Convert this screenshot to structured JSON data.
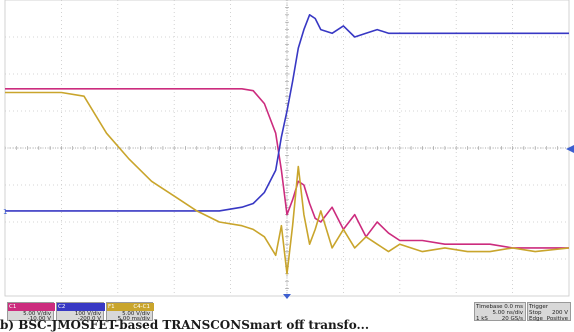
{
  "colors": {
    "ch1": "#cc2c7e",
    "ch2": "#3838c4",
    "ch3": "#c9a52c",
    "grid": "#c8c8c8",
    "axis": "#9a9a9a",
    "marker": "#3d5fd0"
  },
  "ch1": {
    "tag": "C1",
    "vdiv": "5.00 V/div",
    "offset": "-10.00 V"
  },
  "ch2": {
    "tag": "C2",
    "vdiv": "100 V/div",
    "offset": "-200.0 V"
  },
  "ch3": {
    "tag": "F1",
    "label": "C4-C1",
    "vdiv": "5.00 V/div",
    "offset": "5.00 ms/div"
  },
  "timebase": {
    "label": "Timebase",
    "value": "0.0 ms",
    "sdiv": "5.00 ns/div",
    "samples": "1 kS",
    "rate": "20 GS/s"
  },
  "trigger": {
    "label": "Trigger",
    "mode": "Stop",
    "level": "200 V",
    "type": "Edge",
    "slope": "Positive"
  },
  "side_marker": "1",
  "caption": "b) BSC-JMOSFET-based TRANSCONSmart off transfo...",
  "chart_data": {
    "type": "line",
    "x": [
      -25,
      -22,
      -20,
      -18,
      -16,
      -14,
      -12,
      -10,
      -8,
      -6,
      -4,
      -3,
      -2,
      -1,
      -0.5,
      0,
      0.5,
      1,
      1.5,
      2,
      2.5,
      3,
      4,
      5,
      6,
      7,
      8,
      9,
      10,
      12,
      14,
      16,
      18,
      20,
      22,
      25
    ],
    "series": [
      {
        "name": "C1",
        "values": [
          1.6,
          1.6,
          1.6,
          1.6,
          1.6,
          1.6,
          1.6,
          1.6,
          1.6,
          1.6,
          1.6,
          1.55,
          1.2,
          0.4,
          -0.6,
          -1.8,
          -1.4,
          -0.9,
          -1.0,
          -1.5,
          -1.9,
          -2.0,
          -1.6,
          -2.2,
          -1.8,
          -2.4,
          -2.0,
          -2.3,
          -2.5,
          -2.5,
          -2.6,
          -2.6,
          -2.6,
          -2.7,
          -2.7,
          -2.7
        ]
      },
      {
        "name": "C2",
        "values": [
          -1.7,
          -1.7,
          -1.7,
          -1.7,
          -1.7,
          -1.7,
          -1.7,
          -1.7,
          -1.7,
          -1.7,
          -1.6,
          -1.5,
          -1.2,
          -0.6,
          0.3,
          1.0,
          1.8,
          2.7,
          3.2,
          3.6,
          3.5,
          3.2,
          3.1,
          3.3,
          3.0,
          3.1,
          3.2,
          3.1,
          3.1,
          3.1,
          3.1,
          3.1,
          3.1,
          3.1,
          3.1,
          3.1
        ]
      },
      {
        "name": "F1",
        "values": [
          1.5,
          1.5,
          1.5,
          1.4,
          0.4,
          -0.3,
          -0.9,
          -1.3,
          -1.7,
          -2.0,
          -2.1,
          -2.2,
          -2.4,
          -2.9,
          -2.1,
          -3.4,
          -2.1,
          -0.5,
          -1.8,
          -2.6,
          -2.2,
          -1.7,
          -2.7,
          -2.2,
          -2.7,
          -2.4,
          -2.6,
          -2.8,
          -2.6,
          -2.8,
          -2.7,
          -2.8,
          -2.8,
          -2.7,
          -2.8,
          -2.7
        ]
      }
    ],
    "xlim": [
      -25,
      25
    ],
    "ylim": [
      -4,
      4
    ],
    "grid": true
  }
}
